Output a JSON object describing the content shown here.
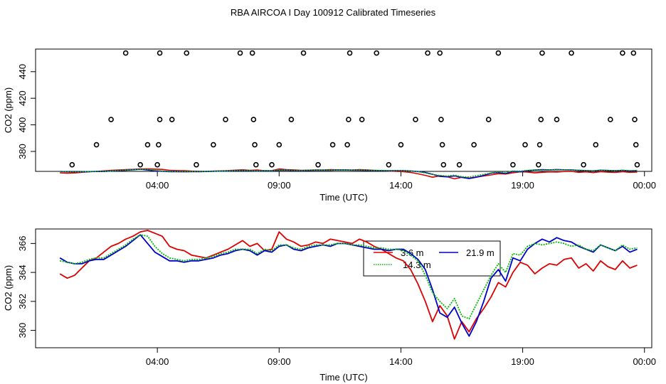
{
  "title": "RBA AIRCOA I  Day 100912  Calibrated Timeseries",
  "chart_data": [
    {
      "type": "scatter+line",
      "title": "RBA AIRCOA I  Day 100912  Calibrated Timeseries",
      "xlabel": "Time (UTC)",
      "ylabel": "CO2 (ppm)",
      "xlim": [
        -1.0,
        24.3
      ],
      "ylim": [
        365,
        457
      ],
      "x_ticks": [
        4,
        9,
        14,
        19,
        24
      ],
      "x_tick_labels": [
        "04:00",
        "09:00",
        "14:00",
        "19:00",
        "00:00"
      ],
      "y_ticks": [
        380,
        400,
        420,
        440
      ],
      "y_tick_labels": [
        "380",
        "400",
        "420",
        "440"
      ],
      "calibration_points": [
        {
          "x": 0.5,
          "y": 370
        },
        {
          "x": 1.5,
          "y": 385
        },
        {
          "x": 2.1,
          "y": 404
        },
        {
          "x": 2.7,
          "y": 454
        },
        {
          "x": 3.3,
          "y": 370
        },
        {
          "x": 3.6,
          "y": 385
        },
        {
          "x": 4.0,
          "y": 370
        },
        {
          "x": 4.05,
          "y": 385
        },
        {
          "x": 4.1,
          "y": 404
        },
        {
          "x": 4.1,
          "y": 454
        },
        {
          "x": 4.6,
          "y": 404
        },
        {
          "x": 5.2,
          "y": 454
        },
        {
          "x": 5.6,
          "y": 370
        },
        {
          "x": 6.3,
          "y": 385
        },
        {
          "x": 6.8,
          "y": 404
        },
        {
          "x": 7.4,
          "y": 454
        },
        {
          "x": 7.9,
          "y": 454
        },
        {
          "x": 7.95,
          "y": 404
        },
        {
          "x": 8.0,
          "y": 385
        },
        {
          "x": 8.05,
          "y": 370
        },
        {
          "x": 8.7,
          "y": 370
        },
        {
          "x": 9.0,
          "y": 385
        },
        {
          "x": 9.5,
          "y": 404
        },
        {
          "x": 10.0,
          "y": 454
        },
        {
          "x": 10.6,
          "y": 370
        },
        {
          "x": 11.2,
          "y": 385
        },
        {
          "x": 11.8,
          "y": 385
        },
        {
          "x": 11.85,
          "y": 404
        },
        {
          "x": 11.9,
          "y": 454
        },
        {
          "x": 12.4,
          "y": 404
        },
        {
          "x": 13.0,
          "y": 454
        },
        {
          "x": 13.5,
          "y": 370
        },
        {
          "x": 14.0,
          "y": 385
        },
        {
          "x": 14.6,
          "y": 404
        },
        {
          "x": 15.1,
          "y": 454
        },
        {
          "x": 15.6,
          "y": 454
        },
        {
          "x": 15.65,
          "y": 404
        },
        {
          "x": 15.7,
          "y": 385
        },
        {
          "x": 15.75,
          "y": 370
        },
        {
          "x": 16.4,
          "y": 370
        },
        {
          "x": 17.0,
          "y": 385
        },
        {
          "x": 17.6,
          "y": 404
        },
        {
          "x": 18.0,
          "y": 454
        },
        {
          "x": 18.6,
          "y": 370
        },
        {
          "x": 19.1,
          "y": 385
        },
        {
          "x": 19.65,
          "y": 370
        },
        {
          "x": 19.7,
          "y": 385
        },
        {
          "x": 19.75,
          "y": 404
        },
        {
          "x": 19.8,
          "y": 454
        },
        {
          "x": 20.4,
          "y": 404
        },
        {
          "x": 21.0,
          "y": 454
        },
        {
          "x": 21.5,
          "y": 370
        },
        {
          "x": 22.0,
          "y": 385
        },
        {
          "x": 22.6,
          "y": 404
        },
        {
          "x": 23.1,
          "y": 454
        },
        {
          "x": 23.55,
          "y": 454
        },
        {
          "x": 23.6,
          "y": 404
        },
        {
          "x": 23.65,
          "y": 385
        },
        {
          "x": 23.7,
          "y": 370
        }
      ],
      "series_note": "same three series as the lower panel"
    },
    {
      "type": "line",
      "xlabel": "Time (UTC)",
      "ylabel": "CO2 (ppm)",
      "xlim": [
        -1.0,
        24.3
      ],
      "ylim": [
        358.8,
        367.0
      ],
      "x_ticks": [
        4,
        9,
        14,
        19,
        24
      ],
      "x_tick_labels": [
        "04:00",
        "09:00",
        "14:00",
        "19:00",
        "00:00"
      ],
      "y_ticks": [
        360,
        362,
        364,
        366
      ],
      "y_tick_labels": [
        "360",
        "362",
        "364",
        "366"
      ],
      "legend": {
        "placement": "top-center-right",
        "entries": [
          "3.6 m",
          "21.9 m",
          "14.3 m"
        ]
      },
      "series": [
        {
          "name": "3.6 m",
          "color": "#dd0000",
          "style": "solid",
          "x": [
            0.0,
            0.3,
            0.6,
            0.9,
            1.2,
            1.5,
            1.8,
            2.1,
            2.4,
            2.7,
            3.0,
            3.3,
            3.6,
            3.9,
            4.2,
            4.5,
            4.8,
            5.1,
            5.4,
            5.7,
            6.0,
            6.3,
            6.6,
            6.9,
            7.2,
            7.5,
            7.8,
            8.1,
            8.4,
            8.7,
            9.0,
            9.3,
            9.6,
            9.9,
            10.2,
            10.5,
            10.8,
            11.1,
            11.4,
            11.7,
            12.0,
            12.3,
            12.6,
            12.9,
            13.2,
            13.5,
            13.8,
            14.1,
            14.4,
            14.7,
            15.0,
            15.3,
            15.6,
            15.9,
            16.2,
            16.5,
            16.8,
            17.1,
            17.4,
            17.7,
            18.0,
            18.3,
            18.6,
            18.9,
            19.2,
            19.5,
            19.8,
            20.1,
            20.4,
            20.7,
            21.0,
            21.3,
            21.6,
            21.9,
            22.2,
            22.5,
            22.8,
            23.1,
            23.4,
            23.7
          ],
          "y": [
            363.9,
            363.6,
            363.8,
            364.3,
            364.8,
            365.0,
            365.4,
            365.8,
            366.0,
            366.3,
            366.5,
            366.8,
            366.9,
            366.7,
            366.5,
            365.8,
            365.6,
            365.5,
            365.2,
            365.1,
            365.0,
            365.2,
            365.4,
            365.6,
            365.9,
            366.2,
            365.8,
            366.0,
            365.5,
            365.6,
            366.8,
            366.3,
            366.1,
            365.8,
            365.9,
            366.1,
            366.0,
            366.3,
            366.2,
            366.1,
            366.0,
            366.3,
            366.1,
            365.8,
            365.6,
            365.3,
            365.0,
            364.8,
            364.2,
            363.2,
            362.0,
            360.6,
            361.7,
            361.0,
            359.4,
            360.6,
            359.9,
            360.8,
            361.5,
            362.3,
            363.3,
            363.0,
            364.0,
            364.7,
            364.5,
            363.9,
            364.3,
            364.6,
            364.5,
            364.9,
            365.0,
            364.3,
            364.6,
            364.1,
            364.8,
            364.4,
            364.2,
            364.8,
            364.3,
            364.5
          ]
        },
        {
          "name": "21.9 m",
          "color": "#0000cc",
          "style": "solid",
          "x": [
            0.0,
            0.3,
            0.6,
            0.9,
            1.2,
            1.5,
            1.8,
            2.1,
            2.4,
            2.7,
            3.0,
            3.3,
            3.6,
            3.9,
            4.2,
            4.5,
            4.8,
            5.1,
            5.4,
            5.7,
            6.0,
            6.3,
            6.6,
            6.9,
            7.2,
            7.5,
            7.8,
            8.1,
            8.4,
            8.7,
            9.0,
            9.3,
            9.6,
            9.9,
            10.2,
            10.5,
            10.8,
            11.1,
            11.4,
            11.7,
            12.0,
            12.3,
            12.6,
            12.9,
            13.2,
            13.5,
            13.8,
            14.1,
            14.4,
            14.7,
            15.0,
            15.3,
            15.6,
            15.9,
            16.2,
            16.5,
            16.8,
            17.1,
            17.4,
            17.7,
            18.0,
            18.3,
            18.6,
            18.9,
            19.2,
            19.5,
            19.8,
            20.1,
            20.4,
            20.7,
            21.0,
            21.3,
            21.6,
            21.9,
            22.2,
            22.5,
            22.8,
            23.1,
            23.4,
            23.7
          ],
          "y": [
            365.0,
            364.7,
            364.6,
            364.6,
            364.8,
            364.9,
            364.9,
            365.2,
            365.5,
            365.8,
            366.2,
            366.6,
            366.0,
            365.4,
            365.1,
            364.8,
            364.8,
            364.7,
            364.8,
            364.8,
            364.9,
            365.0,
            365.2,
            365.3,
            365.5,
            365.6,
            365.5,
            365.2,
            365.5,
            365.4,
            365.8,
            365.9,
            365.6,
            365.5,
            365.7,
            365.8,
            365.9,
            365.8,
            366.0,
            366.0,
            365.9,
            365.8,
            365.7,
            365.6,
            365.6,
            365.5,
            365.6,
            365.6,
            365.3,
            364.9,
            364.2,
            362.8,
            361.2,
            360.9,
            361.6,
            360.5,
            359.6,
            360.6,
            362.0,
            363.6,
            364.2,
            363.4,
            365.0,
            364.8,
            365.6,
            366.0,
            366.3,
            366.1,
            366.4,
            366.2,
            366.1,
            365.8,
            365.6,
            365.4,
            365.9,
            365.7,
            365.5,
            365.8,
            365.4,
            365.6
          ]
        },
        {
          "name": "14.3 m",
          "color": "#00bb00",
          "style": "dotted",
          "x": [
            0.0,
            0.3,
            0.6,
            0.9,
            1.2,
            1.5,
            1.8,
            2.1,
            2.4,
            2.7,
            3.0,
            3.3,
            3.6,
            3.9,
            4.2,
            4.5,
            4.8,
            5.1,
            5.4,
            5.7,
            6.0,
            6.3,
            6.6,
            6.9,
            7.2,
            7.5,
            7.8,
            8.1,
            8.4,
            8.7,
            9.0,
            9.3,
            9.6,
            9.9,
            10.2,
            10.5,
            10.8,
            11.1,
            11.4,
            11.7,
            12.0,
            12.3,
            12.6,
            12.9,
            13.2,
            13.5,
            13.8,
            14.1,
            14.4,
            14.7,
            15.0,
            15.3,
            15.6,
            15.9,
            16.2,
            16.5,
            16.8,
            17.1,
            17.4,
            17.7,
            18.0,
            18.3,
            18.6,
            18.9,
            19.2,
            19.5,
            19.8,
            20.1,
            20.4,
            20.7,
            21.0,
            21.3,
            21.6,
            21.9,
            22.2,
            22.5,
            22.8,
            23.1,
            23.4,
            23.7
          ],
          "y": [
            364.8,
            364.7,
            364.6,
            364.7,
            364.9,
            365.0,
            365.0,
            365.3,
            365.6,
            365.9,
            366.3,
            366.6,
            366.5,
            365.8,
            365.3,
            365.0,
            364.9,
            364.8,
            364.9,
            364.9,
            365.0,
            365.1,
            365.3,
            365.4,
            365.6,
            365.6,
            365.6,
            365.3,
            365.6,
            365.5,
            365.9,
            365.9,
            365.7,
            365.6,
            365.8,
            365.9,
            365.9,
            365.9,
            366.0,
            366.0,
            365.9,
            365.9,
            365.8,
            365.7,
            365.7,
            365.6,
            365.6,
            365.5,
            365.2,
            364.8,
            363.8,
            362.6,
            362.0,
            361.5,
            362.2,
            361.0,
            360.8,
            361.8,
            362.8,
            363.8,
            364.6,
            364.0,
            365.3,
            365.2,
            365.8,
            366.0,
            365.9,
            366.0,
            366.1,
            366.0,
            365.8,
            365.9,
            365.6,
            365.5,
            365.9,
            365.7,
            365.5,
            365.9,
            365.6,
            365.7
          ]
        }
      ]
    }
  ]
}
